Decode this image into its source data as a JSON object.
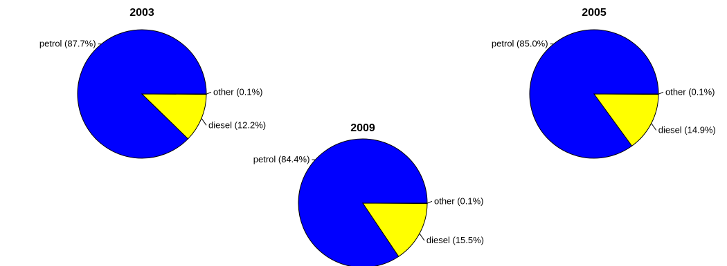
{
  "chart_data": [
    {
      "type": "pie",
      "title": "2003",
      "slices": [
        {
          "label": "petrol",
          "value": 87.7,
          "label_text": "petrol (87.7%)",
          "color": "#0000ff"
        },
        {
          "label": "other",
          "value": 0.1,
          "label_text": "other (0.1%)",
          "color": "#00ff00"
        },
        {
          "label": "diesel",
          "value": 12.2,
          "label_text": "diesel (12.2%)",
          "color": "#ffff00"
        }
      ]
    },
    {
      "type": "pie",
      "title": "2005",
      "slices": [
        {
          "label": "petrol",
          "value": 85.0,
          "label_text": "petrol (85.0%)",
          "color": "#0000ff"
        },
        {
          "label": "other",
          "value": 0.1,
          "label_text": "other (0.1%)",
          "color": "#00ff00"
        },
        {
          "label": "diesel",
          "value": 14.9,
          "label_text": "diesel (14.9%)",
          "color": "#ffff00"
        }
      ]
    },
    {
      "type": "pie",
      "title": "2009",
      "slices": [
        {
          "label": "petrol",
          "value": 84.4,
          "label_text": "petrol (84.4%)",
          "color": "#0000ff"
        },
        {
          "label": "other",
          "value": 0.1,
          "label_text": "other (0.1%)",
          "color": "#00ff00"
        },
        {
          "label": "diesel",
          "value": 15.5,
          "label_text": "diesel (15.5%)",
          "color": "#ffff00"
        }
      ]
    }
  ]
}
